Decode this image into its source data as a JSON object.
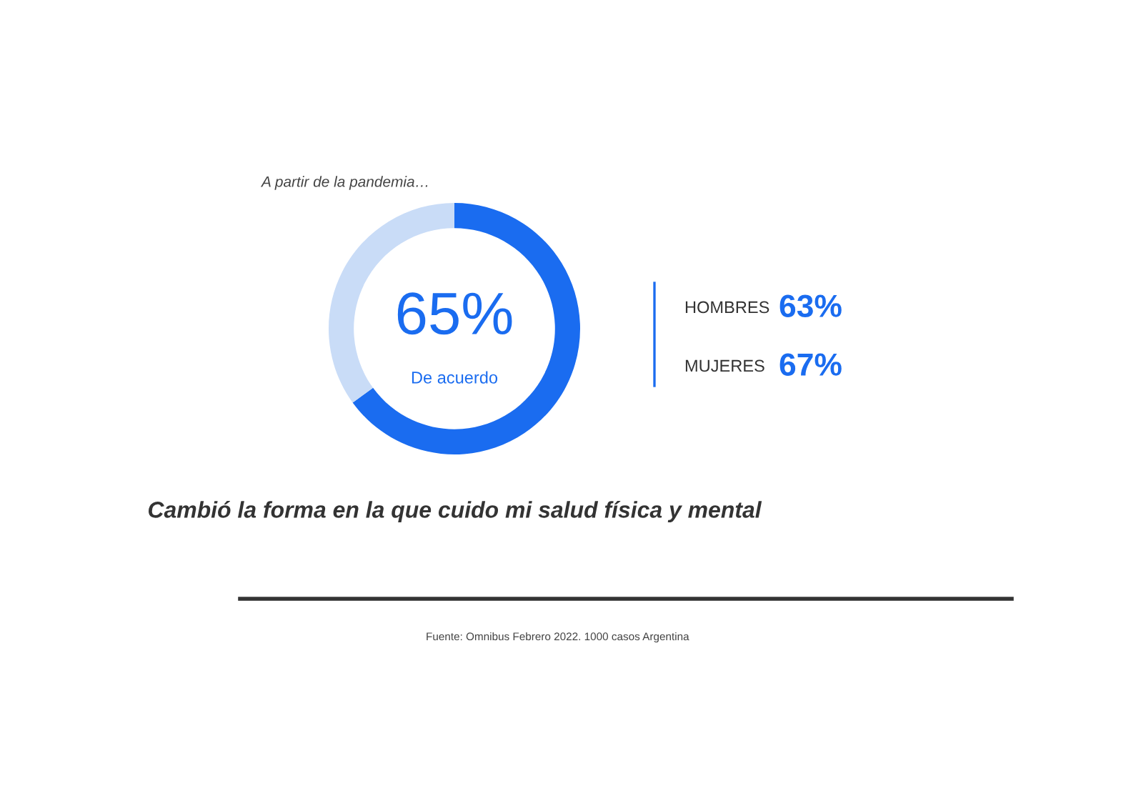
{
  "chart_data": {
    "type": "donut",
    "title": "A partir de la pandemia…",
    "categories": [
      "De acuerdo",
      null
    ],
    "values": [
      65,
      35
    ],
    "value_labels": [
      "65%",
      null
    ],
    "colors": [
      "#1a6cf0",
      "#c9dcf7"
    ],
    "xlabel": "Cambió la forma en la que cuido mi salud física y mental",
    "annotations": [
      "HOMBRES 63%",
      "MUJERES 67%",
      "Fuente: Omnibus Febrero 2022. 1000 casos Argentina"
    ]
  }
}
